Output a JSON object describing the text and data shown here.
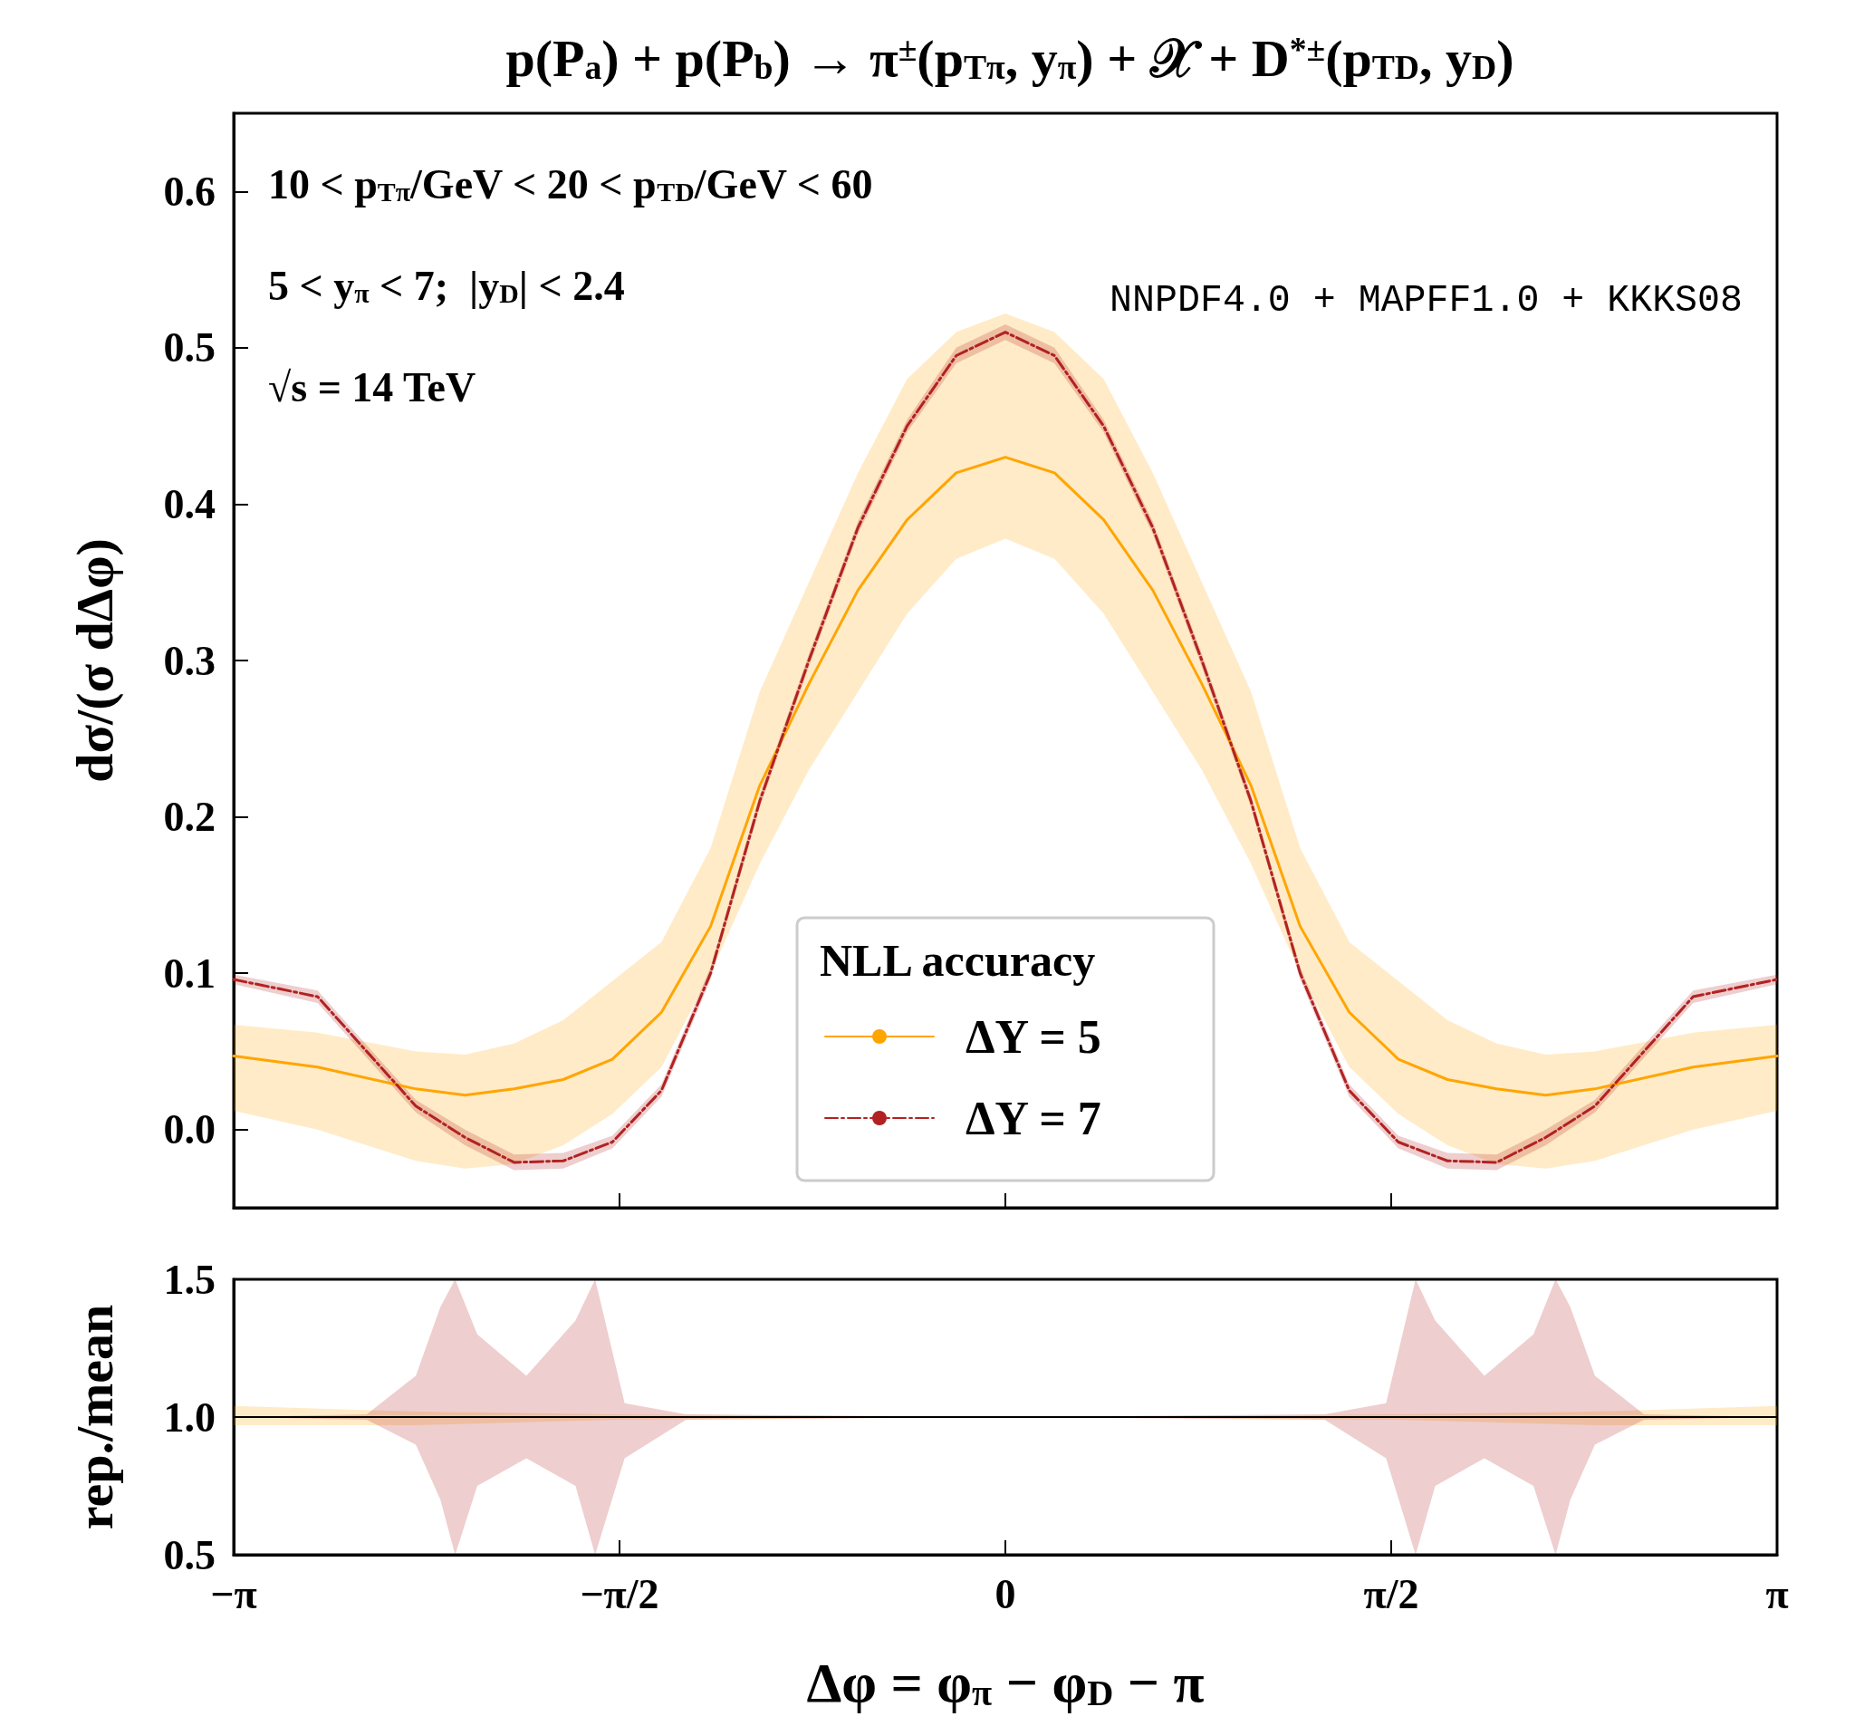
{
  "chart_data": [
    {
      "type": "line",
      "title": "p(P$_{a}$) + p(P$_{b}$) → π$^{±}$(p$_{Tπ}$, y$_{π}$) + 𝒳 + D$^{*±}$(p$_{TD}$, y$_{D}$)",
      "ylabel": "dσ/(σ dΔφ)",
      "x": [
        -3.1416,
        -2.8,
        -2.4,
        -2.2,
        -2.0,
        -1.8,
        -1.6,
        -1.4,
        -1.2,
        -1.0,
        -0.8,
        -0.6,
        -0.4,
        -0.2,
        0,
        0.2,
        0.4,
        0.6,
        0.8,
        1.0,
        1.2,
        1.4,
        1.6,
        1.8,
        2.0,
        2.2,
        2.4,
        2.8,
        3.1416
      ],
      "series": [
        {
          "name": "ΔY = 5",
          "color": "#ffa500",
          "line_style": "solid",
          "values": [
            0.047,
            0.04,
            0.026,
            0.022,
            0.026,
            0.032,
            0.045,
            0.075,
            0.13,
            0.22,
            0.285,
            0.345,
            0.39,
            0.42,
            0.43,
            0.42,
            0.39,
            0.345,
            0.285,
            0.22,
            0.13,
            0.075,
            0.045,
            0.032,
            0.026,
            0.022,
            0.026,
            0.04,
            0.047
          ],
          "lower": [
            0.012,
            0.0,
            -0.02,
            -0.025,
            -0.022,
            -0.01,
            0.01,
            0.04,
            0.1,
            0.17,
            0.23,
            0.28,
            0.33,
            0.365,
            0.378,
            0.365,
            0.33,
            0.28,
            0.23,
            0.17,
            0.1,
            0.04,
            0.01,
            -0.01,
            -0.022,
            -0.025,
            -0.02,
            0.0,
            0.012
          ],
          "upper": [
            0.067,
            0.062,
            0.05,
            0.048,
            0.055,
            0.07,
            0.095,
            0.12,
            0.18,
            0.28,
            0.35,
            0.42,
            0.48,
            0.51,
            0.522,
            0.51,
            0.48,
            0.42,
            0.35,
            0.28,
            0.18,
            0.12,
            0.095,
            0.07,
            0.055,
            0.048,
            0.05,
            0.062,
            0.067
          ]
        },
        {
          "name": "ΔY = 7",
          "color": "#b22222",
          "line_style": "dashed",
          "values": [
            0.096,
            0.085,
            0.015,
            -0.005,
            -0.021,
            -0.02,
            -0.008,
            0.025,
            0.1,
            0.21,
            0.3,
            0.385,
            0.45,
            0.495,
            0.51,
            0.495,
            0.45,
            0.385,
            0.3,
            0.21,
            0.1,
            0.025,
            -0.008,
            -0.02,
            -0.021,
            -0.005,
            0.015,
            0.085,
            0.096
          ],
          "lower": [
            0.093,
            0.081,
            0.011,
            -0.01,
            -0.026,
            -0.025,
            -0.012,
            0.021,
            0.096,
            0.206,
            0.296,
            0.381,
            0.446,
            0.49,
            0.505,
            0.49,
            0.446,
            0.381,
            0.296,
            0.206,
            0.096,
            0.021,
            -0.012,
            -0.025,
            -0.026,
            -0.01,
            0.011,
            0.081,
            0.093
          ],
          "upper": [
            0.099,
            0.089,
            0.019,
            0.0,
            -0.016,
            -0.015,
            -0.004,
            0.029,
            0.104,
            0.214,
            0.304,
            0.389,
            0.454,
            0.5,
            0.515,
            0.5,
            0.454,
            0.389,
            0.304,
            0.214,
            0.104,
            0.029,
            -0.004,
            -0.015,
            -0.016,
            0.0,
            0.019,
            0.089,
            0.099
          ]
        }
      ],
      "xlim": [
        -3.1416,
        3.1416
      ],
      "ylim": [
        -0.05,
        0.65
      ],
      "xticks": [
        {
          "value": -3.1416,
          "label": null
        },
        {
          "value": -1.5708,
          "label": null
        },
        {
          "value": 0,
          "label": null
        },
        {
          "value": 1.5708,
          "label": null
        },
        {
          "value": 3.1416,
          "label": null
        }
      ],
      "yticks": [
        {
          "value": 0,
          "label": "0.0"
        },
        0.1,
        0.2,
        0.3,
        0.4,
        0.5,
        0.6
      ],
      "tick_labels": "y",
      "legend": "bottom",
      "legend_title": "NLL accuracy",
      "marker": "none",
      "annotations": [
        "10 < p$_{Tπ}$/GeV < 20 < p$_{TD}$/GeV < 60",
        "5 < y$_{π}$ < 7;  |y$_{D}$| < 2.4",
        "√s = 14 TeV",
        "NNPDF4.0 + MAPFF1.0 + KKKS08"
      ]
    },
    {
      "type": "line",
      "xlabel": "Δφ = φ$_{π}$ − φ$_{D}$ − π",
      "ylabel": "rep./mean",
      "series": [
        {
          "color": "#ffa500",
          "line_style": "solid",
          "x": [
            -3.1416,
            -2.4,
            -1.6,
            0,
            1.6,
            2.4,
            3.1416
          ],
          "values": [
            null,
            null,
            null,
            null,
            null,
            null,
            null
          ],
          "lower": [
            0.97,
            0.97,
            0.99,
            1,
            0.99,
            0.97,
            0.97
          ],
          "upper": [
            1.04,
            1.02,
            1.01,
            1,
            1.01,
            1.02,
            1.04
          ]
        },
        {
          "color": "#b22222",
          "line_style": "dashed",
          "x": [
            -3.1416,
            -2.6,
            -2.4,
            -2.3,
            -2.24,
            -2.15,
            -1.95,
            -1.75,
            -1.67,
            -1.55,
            -1.3,
            0,
            1.3,
            1.55,
            1.67,
            1.75,
            1.95,
            2.15,
            2.24,
            2.3,
            2.4,
            2.6,
            3.1416
          ],
          "values": [
            null,
            null,
            null,
            null,
            null,
            null,
            null,
            null,
            null,
            null,
            null,
            null,
            null,
            null,
            null,
            null,
            null,
            null,
            null,
            null,
            null,
            null,
            null
          ],
          "lower": [
            1,
            0.99,
            0.9,
            0.7,
            0.5,
            0.75,
            0.85,
            0.75,
            0.5,
            0.85,
            0.99,
            1,
            0.99,
            0.85,
            0.5,
            0.75,
            0.85,
            0.75,
            0.5,
            0.7,
            0.9,
            0.99,
            1
          ],
          "upper": [
            1,
            1.01,
            1.15,
            1.4,
            1.5,
            1.3,
            1.15,
            1.35,
            1.5,
            1.05,
            1.01,
            1,
            1.01,
            1.05,
            1.5,
            1.35,
            1.15,
            1.3,
            1.5,
            1.4,
            1.15,
            1.01,
            1
          ]
        }
      ],
      "xlim": [
        -3.1416,
        3.1416
      ],
      "ylim": [
        0.5,
        1.5
      ],
      "xticks": [
        {
          "value": -3.1416,
          "label": "−π"
        },
        {
          "value": -1.5708,
          "label": "−π/2"
        },
        0,
        {
          "value": 1.5708,
          "label": "π/2"
        },
        {
          "value": 3.1416,
          "label": "π"
        }
      ],
      "yticks": [
        0.5,
        {
          "value": 1,
          "label": "1.0"
        },
        1.5
      ],
      "marker": "none",
      "ref_lines": [
        {
          "axis": "y",
          "value": 1,
          "color": "#000000"
        }
      ]
    }
  ]
}
